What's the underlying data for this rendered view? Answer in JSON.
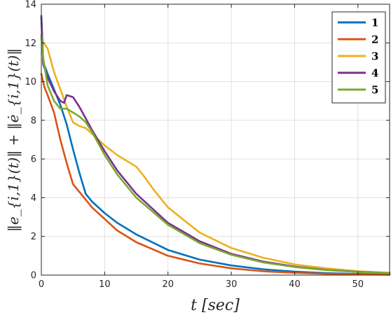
{
  "chart_data": {
    "type": "line",
    "xlabel": "t [sec]",
    "ylabel": "‖e_{i,1}(t)‖ + ‖ė_{i,1}(t)‖",
    "xlim": [
      0,
      55
    ],
    "ylim": [
      0,
      14
    ],
    "xticks": [
      0,
      10,
      20,
      30,
      40,
      50
    ],
    "yticks": [
      0,
      2,
      4,
      6,
      8,
      10,
      12,
      14
    ],
    "grid": true,
    "legend_position": "top-right",
    "series": [
      {
        "name": "1",
        "color": "#0072BD",
        "x": [
          0,
          0.3,
          1,
          2,
          3,
          4,
          5,
          6,
          7,
          8,
          10,
          12,
          15,
          20,
          25,
          30,
          35,
          40,
          45,
          50,
          55
        ],
        "y": [
          13.4,
          11.0,
          10.4,
          9.6,
          8.8,
          7.8,
          6.5,
          5.3,
          4.2,
          3.8,
          3.2,
          2.7,
          2.1,
          1.3,
          0.8,
          0.5,
          0.3,
          0.18,
          0.1,
          0.06,
          0.04
        ]
      },
      {
        "name": "2",
        "color": "#D95319",
        "x": [
          0,
          0.2,
          0.5,
          1,
          2,
          3,
          4,
          5,
          6,
          8,
          10,
          12,
          15,
          20,
          25,
          30,
          35,
          40,
          45,
          50,
          55
        ],
        "y": [
          10.4,
          10.1,
          9.7,
          9.3,
          8.4,
          7.0,
          5.8,
          4.7,
          4.3,
          3.5,
          2.9,
          2.3,
          1.7,
          1.0,
          0.6,
          0.35,
          0.2,
          0.12,
          0.07,
          0.04,
          0.02
        ]
      },
      {
        "name": "3",
        "color": "#EDB120",
        "x": [
          0,
          0.3,
          0.6,
          1,
          2,
          3,
          4,
          5,
          6,
          7,
          8,
          10,
          12,
          14,
          15,
          16,
          18,
          20,
          25,
          30,
          35,
          40,
          45,
          50,
          55
        ],
        "y": [
          12.2,
          12.0,
          11.9,
          11.7,
          10.5,
          9.6,
          8.7,
          7.9,
          7.7,
          7.6,
          7.3,
          6.7,
          6.2,
          5.8,
          5.6,
          5.2,
          4.3,
          3.5,
          2.2,
          1.4,
          0.9,
          0.55,
          0.35,
          0.2,
          0.12
        ]
      },
      {
        "name": "4",
        "color": "#7E2F8E",
        "x": [
          0,
          0.3,
          1,
          2,
          3,
          3.6,
          4,
          5,
          6,
          7,
          8,
          10,
          12,
          15,
          20,
          25,
          30,
          35,
          40,
          45,
          50,
          55
        ],
        "y": [
          13.3,
          10.9,
          10.2,
          9.5,
          9.0,
          8.9,
          9.3,
          9.2,
          8.7,
          8.1,
          7.5,
          6.4,
          5.4,
          4.2,
          2.7,
          1.75,
          1.1,
          0.7,
          0.44,
          0.27,
          0.17,
          0.1
        ]
      },
      {
        "name": "5",
        "color": "#77AC30",
        "x": [
          0,
          0.3,
          1,
          2,
          3,
          4,
          5,
          6,
          7,
          8,
          10,
          12,
          15,
          20,
          25,
          30,
          35,
          40,
          45,
          50,
          55
        ],
        "y": [
          12.4,
          11.2,
          9.8,
          9.0,
          8.6,
          8.6,
          8.4,
          8.2,
          7.9,
          7.4,
          6.2,
          5.2,
          4.0,
          2.6,
          1.65,
          1.05,
          0.66,
          0.42,
          0.26,
          0.16,
          0.1
        ]
      }
    ]
  }
}
